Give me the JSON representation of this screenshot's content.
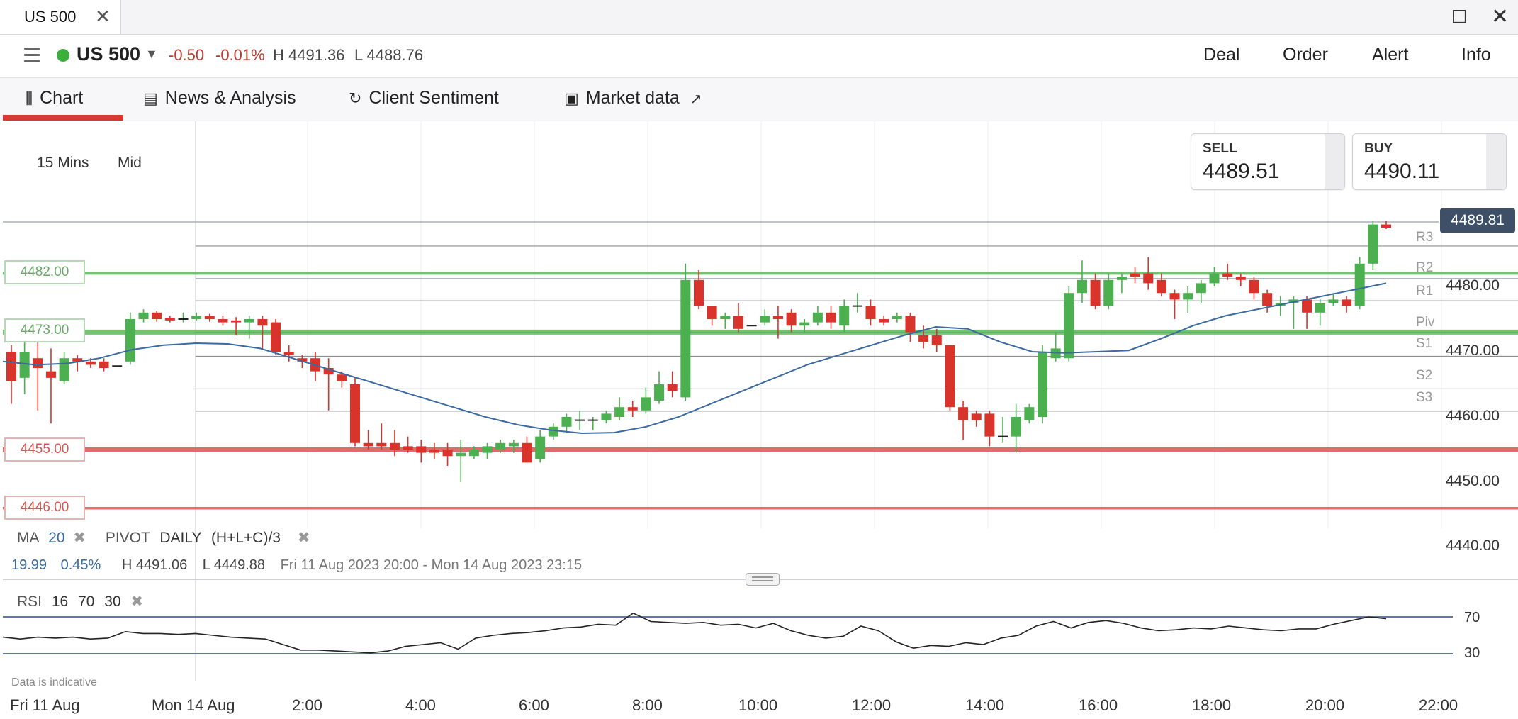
{
  "window": {
    "tab_title": "US 500",
    "tab_close": "✕",
    "maximize": "□",
    "close": "✕"
  },
  "instrument": {
    "symbol": "US 500",
    "change": "-0.50",
    "change_pct": "-0.01%",
    "high": "H 4491.36",
    "low": "L 4488.76",
    "status_color": "#3cae3c"
  },
  "menu": [
    "Deal",
    "Order",
    "Alert",
    "Info"
  ],
  "tabs": [
    {
      "label": "Chart",
      "icon": "candlestick-icon"
    },
    {
      "label": "News & Analysis",
      "icon": "newspaper-icon"
    },
    {
      "label": "Client Sentiment",
      "icon": "sentiment-icon"
    },
    {
      "label": "Market data",
      "icon": "clipboard-icon"
    }
  ],
  "timeframe": {
    "interval": "15 Mins",
    "price_type": "Mid"
  },
  "sell": {
    "label": "SELL",
    "price": "4489.51"
  },
  "buy": {
    "label": "BUY",
    "price": "4490.11"
  },
  "last_price": "4489.81",
  "levels": [
    {
      "label": "4482.00",
      "value": 4482,
      "color": "#5cb85c"
    },
    {
      "label": "4473.00",
      "value": 4473,
      "color": "#5cb85c"
    },
    {
      "label": "4455.00",
      "value": 4455,
      "color": "#d9534f"
    },
    {
      "label": "4446.00",
      "value": 4446,
      "color": "#d9534f"
    }
  ],
  "pivots": [
    {
      "label": "R3",
      "value": 4486.2
    },
    {
      "label": "R2",
      "value": 4481.2
    },
    {
      "label": "R1",
      "value": 4477.8
    },
    {
      "label": "Piv",
      "value": 4473.0
    },
    {
      "label": "S1",
      "value": 4469.3
    },
    {
      "label": "S2",
      "value": 4464.3
    },
    {
      "label": "S3",
      "value": 4460.9
    }
  ],
  "y_axis": [
    "4480.00",
    "4470.00",
    "4460.00",
    "4450.00",
    "4440.00"
  ],
  "x_axis": [
    "Fri 11 Aug",
    "Mon 14 Aug",
    "2:00",
    "4:00",
    "6:00",
    "8:00",
    "10:00",
    "12:00",
    "14:00",
    "16:00",
    "18:00",
    "20:00",
    "22:00"
  ],
  "indicators": {
    "ma": {
      "name": "MA",
      "period": "20"
    },
    "pivot": {
      "name": "PIVOT",
      "frequency": "DAILY",
      "formula": "(H+L+C)/3"
    },
    "stats": {
      "ma_value": "19.99",
      "pct": "0.45%",
      "high": "H 4491.06",
      "low": "L 4449.88",
      "range": "Fri 11 Aug 2023 20:00 - Mon 14 Aug 2023 23:15"
    },
    "rsi": {
      "name": "RSI",
      "period": "16",
      "upper": "70",
      "lower": "30"
    }
  },
  "disclaimer": "Data is indicative",
  "chart_data": {
    "type": "candlestick",
    "ylim": [
      4440,
      4490
    ],
    "candles": [
      [
        4470.0,
        4465.5,
        4471.0,
        4462.0
      ],
      [
        4466.0,
        4470.0,
        4471.5,
        4463.5
      ],
      [
        4469.0,
        4467.5,
        4471.5,
        4461.0
      ],
      [
        4467.0,
        4466.0,
        4470.5,
        4459.0
      ],
      [
        4465.5,
        4469.0,
        4470.0,
        4465.0
      ],
      [
        4469.0,
        4468.5,
        4469.5,
        4467.0
      ],
      [
        4468.5,
        4468.0,
        4469.0,
        4467.5
      ],
      [
        4468.5,
        4467.5,
        4469.0,
        4467.0
      ],
      [
        4467.8,
        4467.8,
        4467.8,
        4467.8
      ],
      [
        4468.5,
        4475.0,
        4476.0,
        4468.0
      ],
      [
        4475.0,
        4476.0,
        4476.5,
        4474.5
      ],
      [
        4476.0,
        4475.0,
        4476.3,
        4474.6
      ],
      [
        4475.2,
        4474.8,
        4475.5,
        4474.5
      ],
      [
        4475.0,
        4475.0,
        4476.0,
        4474.5
      ],
      [
        4475.0,
        4475.5,
        4476.0,
        4474.8
      ],
      [
        4475.5,
        4475.0,
        4475.8,
        4474.6
      ],
      [
        4475.0,
        4474.5,
        4475.5,
        4474.0
      ],
      [
        4474.8,
        4474.5,
        4475.3,
        4472.5
      ],
      [
        4474.5,
        4475.0,
        4475.5,
        4472.0
      ],
      [
        4475.0,
        4474.0,
        4475.5,
        4470.5
      ],
      [
        4474.5,
        4470.0,
        4475.0,
        4469.5
      ],
      [
        4470.0,
        4469.5,
        4471.0,
        4468.5
      ],
      [
        4469.0,
        4468.5,
        4469.5,
        4467.5
      ],
      [
        4469.0,
        4467.0,
        4470.0,
        4465.5
      ],
      [
        4467.5,
        4466.5,
        4469.0,
        4461.0
      ],
      [
        4466.5,
        4465.5,
        4467.0,
        4464.5
      ],
      [
        4465.0,
        4456.0,
        4466.0,
        4455.5
      ],
      [
        4456.0,
        4455.5,
        4458.0,
        4455.0
      ],
      [
        4456.0,
        4455.5,
        4459.0,
        4455.0
      ],
      [
        4456.0,
        4455.0,
        4458.0,
        4454.0
      ],
      [
        4455.5,
        4455.0,
        4457.0,
        4454.5
      ],
      [
        4455.5,
        4454.5,
        4456.5,
        4453.0
      ],
      [
        4455.0,
        4454.5,
        4456.0,
        4453.5
      ],
      [
        4455.0,
        4454.0,
        4456.0,
        4452.5
      ],
      [
        4454.0,
        4454.5,
        4456.5,
        4450.0
      ],
      [
        4454.0,
        4455.0,
        4455.5,
        4453.5
      ],
      [
        4454.5,
        4455.5,
        4456.0,
        4453.5
      ],
      [
        4455.0,
        4456.0,
        4456.5,
        4454.5
      ],
      [
        4455.5,
        4456.0,
        4456.5,
        4454.5
      ],
      [
        4456.0,
        4453.0,
        4457.0,
        4453.0
      ],
      [
        4453.5,
        4457.0,
        4458.0,
        4453.0
      ],
      [
        4457.0,
        4458.5,
        4459.0,
        4456.5
      ],
      [
        4458.5,
        4460.0,
        4460.5,
        4457.5
      ],
      [
        4459.5,
        4459.5,
        4461.0,
        4458.0
      ],
      [
        4459.5,
        4459.5,
        4460.0,
        4458.0
      ],
      [
        4459.5,
        4460.5,
        4461.0,
        4459.0
      ],
      [
        4460.0,
        4461.5,
        4463.0,
        4459.5
      ],
      [
        4461.5,
        4461.0,
        4462.5,
        4460.0
      ],
      [
        4461.0,
        4463.0,
        4464.5,
        4460.5
      ],
      [
        4462.5,
        4465.0,
        4467.0,
        4462.0
      ],
      [
        4465.0,
        4464.0,
        4467.0,
        4463.0
      ],
      [
        4463.0,
        4481.0,
        4483.5,
        4462.5
      ],
      [
        4481.0,
        4477.0,
        4482.5,
        4476.5
      ],
      [
        4477.0,
        4475.0,
        4477.0,
        4474.0
      ],
      [
        4475.0,
        4475.5,
        4476.0,
        4473.5
      ],
      [
        4475.5,
        4473.5,
        4477.5,
        4473.0
      ],
      [
        4474.0,
        4474.0,
        4474.0,
        4474.0
      ],
      [
        4474.5,
        4475.5,
        4476.5,
        4474.0
      ],
      [
        4475.5,
        4475.0,
        4477.0,
        4472.0
      ],
      [
        4476.0,
        4474.0,
        4476.5,
        4473.0
      ],
      [
        4474.0,
        4474.5,
        4475.0,
        4473.0
      ],
      [
        4474.5,
        4476.0,
        4477.0,
        4474.0
      ],
      [
        4476.0,
        4474.5,
        4477.0,
        4473.5
      ],
      [
        4474.0,
        4477.0,
        4478.0,
        4473.0
      ],
      [
        4477.0,
        4477.0,
        4479.0,
        4476.0
      ],
      [
        4477.0,
        4475.0,
        4478.0,
        4474.0
      ],
      [
        4475.0,
        4474.5,
        4475.5,
        4474.0
      ],
      [
        4475.0,
        4475.5,
        4476.0,
        4474.5
      ],
      [
        4475.5,
        4473.0,
        4476.0,
        4471.5
      ],
      [
        4472.5,
        4471.5,
        4474.0,
        4470.5
      ],
      [
        4472.5,
        4471.0,
        4473.5,
        4470.0
      ],
      [
        4471.0,
        4461.5,
        4471.0,
        4461.0
      ],
      [
        4461.5,
        4459.5,
        4462.5,
        4456.5
      ],
      [
        4460.5,
        4459.5,
        4461.0,
        4458.5
      ],
      [
        4460.5,
        4457.0,
        4461.0,
        4455.5
      ],
      [
        4457.0,
        4457.0,
        4460.0,
        4456.0
      ],
      [
        4457.0,
        4460.0,
        4462.0,
        4454.5
      ],
      [
        4459.5,
        4461.5,
        4462.0,
        4459.0
      ],
      [
        4460.0,
        4470.0,
        4471.0,
        4459.0
      ],
      [
        4469.0,
        4470.5,
        4473.0,
        4468.5
      ],
      [
        4469.0,
        4479.0,
        4480.0,
        4468.5
      ],
      [
        4479.0,
        4481.0,
        4484.0,
        4477.5
      ],
      [
        4481.0,
        4477.0,
        4482.0,
        4476.5
      ],
      [
        4477.0,
        4481.0,
        4482.0,
        4476.5
      ],
      [
        4481.0,
        4481.5,
        4482.0,
        4479.0
      ],
      [
        4482.0,
        4481.5,
        4483.0,
        4480.5
      ],
      [
        4482.0,
        4480.5,
        4484.5,
        4479.5
      ],
      [
        4481.0,
        4479.0,
        4482.0,
        4478.5
      ],
      [
        4479.0,
        4478.0,
        4479.5,
        4475.0
      ],
      [
        4478.0,
        4479.0,
        4480.0,
        4476.0
      ],
      [
        4479.0,
        4480.5,
        4481.0,
        4477.5
      ],
      [
        4480.5,
        4482.0,
        4483.0,
        4480.0
      ],
      [
        4482.0,
        4481.5,
        4483.5,
        4481.0
      ],
      [
        4481.5,
        4481.0,
        4482.0,
        4480.0
      ],
      [
        4481.0,
        4479.0,
        4481.5,
        4478.0
      ],
      [
        4479.0,
        4477.0,
        4479.5,
        4476.0
      ],
      [
        4477.0,
        4477.5,
        4478.5,
        4475.5
      ],
      [
        4477.5,
        4478.0,
        4478.5,
        4473.5
      ],
      [
        4478.0,
        4476.0,
        4478.5,
        4473.5
      ],
      [
        4476.0,
        4477.5,
        4478.0,
        4474.0
      ],
      [
        4477.5,
        4478.0,
        4479.0,
        4477.0
      ],
      [
        4478.0,
        4477.0,
        4478.5,
        4476.0
      ],
      [
        4477.0,
        4483.5,
        4484.5,
        4476.5
      ],
      [
        4483.5,
        4489.5,
        4490.0,
        4482.5
      ],
      [
        4489.5,
        4489.0,
        4490.0,
        4488.8
      ]
    ],
    "ma": [
      4468.5,
      4468.0,
      4468.2,
      4469.0,
      4470.3,
      4471.0,
      4471.3,
      4471.2,
      4470.5,
      4469.0,
      4467.5,
      4466.0,
      4464.5,
      4463.0,
      4461.5,
      4460.0,
      4458.8,
      4458.0,
      4457.5,
      4457.6,
      4458.5,
      4460.0,
      4462.0,
      4464.0,
      4466.0,
      4468.0,
      4469.5,
      4471.0,
      4472.5,
      4473.8,
      4473.5,
      4471.5,
      4470.0,
      4469.8,
      4470.0,
      4470.2,
      4472.0,
      4474.0,
      4475.5,
      4476.5,
      4477.5,
      4478.5,
      4479.5,
      4480.5
    ],
    "rsi": [
      48,
      46,
      48,
      47,
      48,
      46,
      47,
      54,
      52,
      52,
      51,
      52,
      50,
      48,
      47,
      46,
      40,
      34,
      34,
      33,
      32,
      31,
      33,
      38,
      40,
      42,
      35,
      47,
      50,
      52,
      53,
      55,
      58,
      59,
      62,
      61,
      74,
      65,
      64,
      63,
      64,
      61,
      62,
      58,
      63,
      55,
      50,
      47,
      49,
      60,
      55,
      43,
      36,
      39,
      38,
      42,
      40,
      47,
      50,
      60,
      65,
      58,
      64,
      66,
      63,
      58,
      55,
      56,
      58,
      57,
      60,
      58,
      56,
      55,
      57,
      57,
      62,
      66,
      70,
      68
    ]
  }
}
